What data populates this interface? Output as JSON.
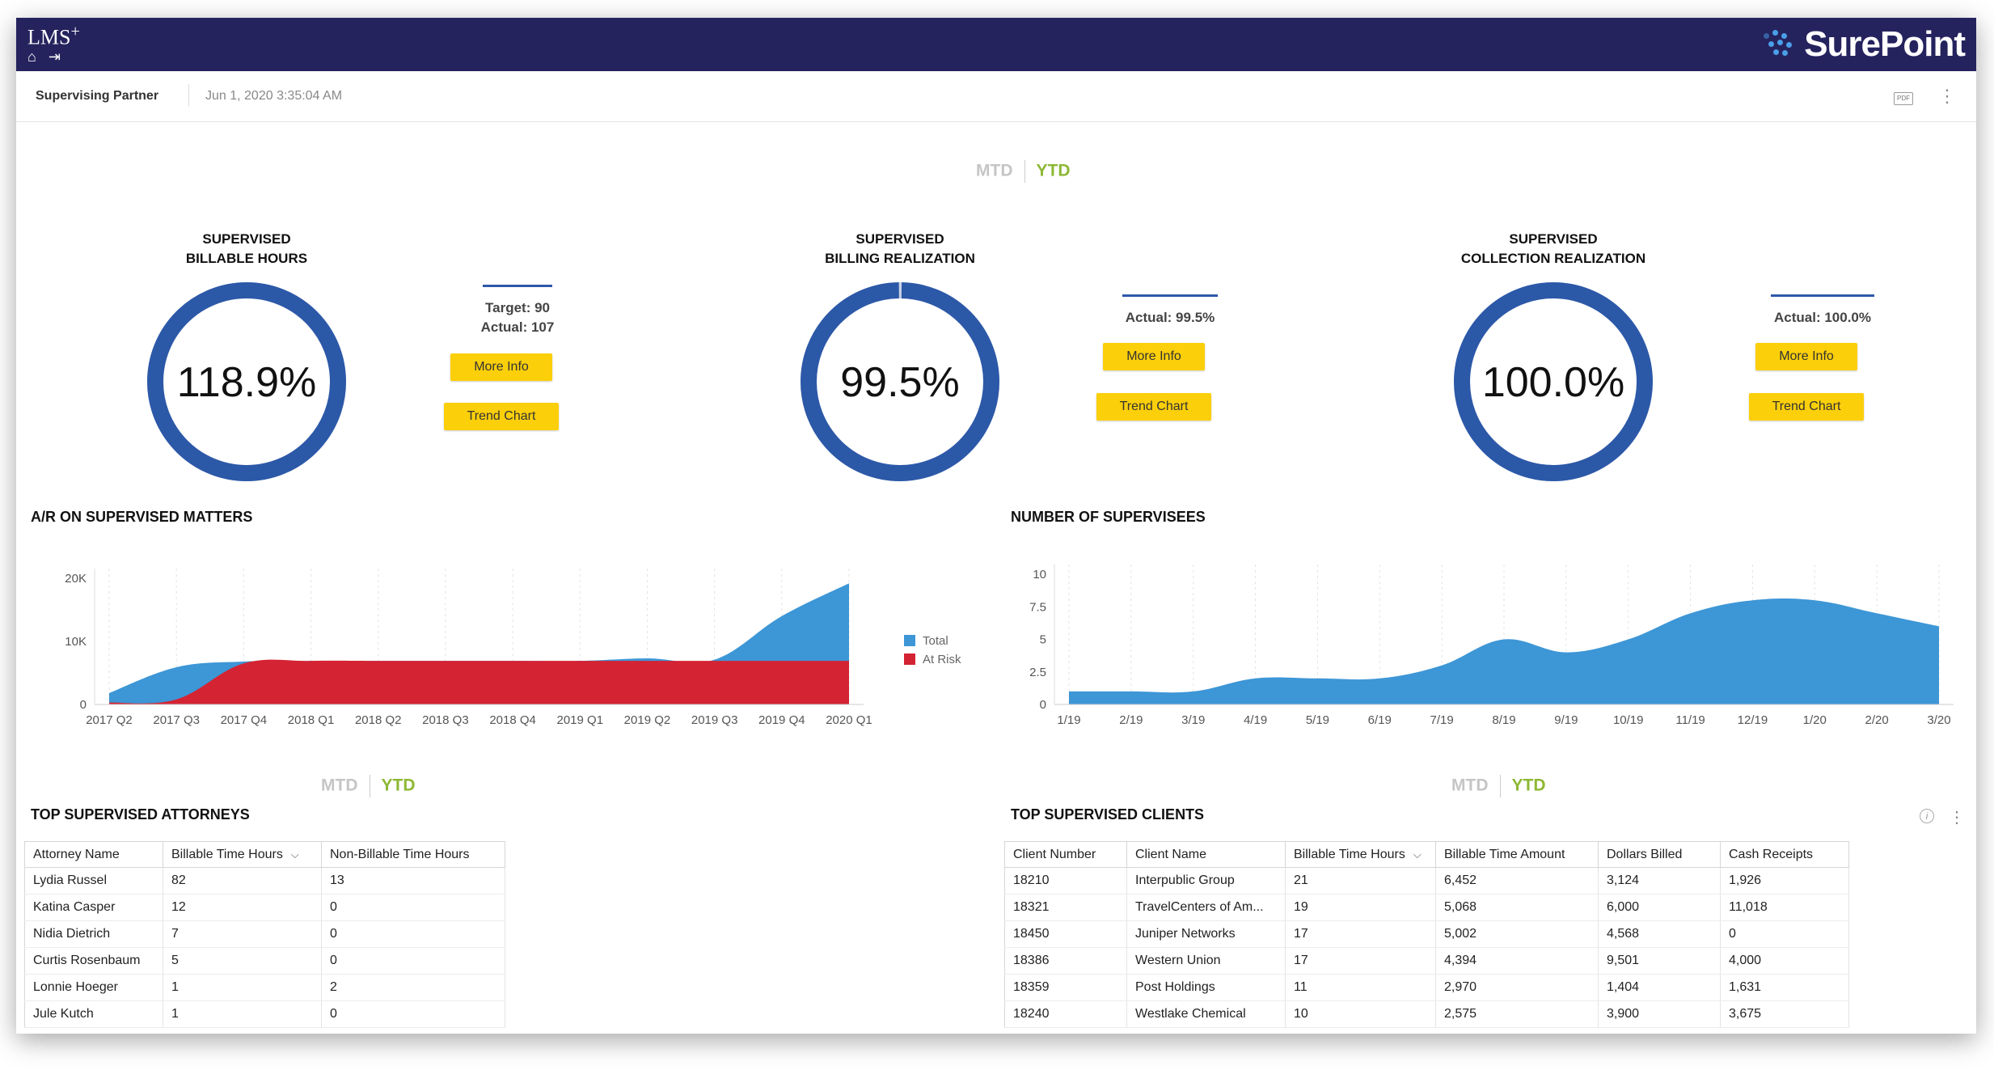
{
  "header": {
    "app_name": "LMS",
    "app_suffix": "+",
    "home_icon": "⌂",
    "logout_icon": "⇥",
    "brand": "SurePoint"
  },
  "subheader": {
    "role": "Supervising Partner",
    "timestamp": "Jun 1, 2020 3:35:04 AM",
    "pdf_label": "PDF",
    "menu_icon": "⋮"
  },
  "period_toggle": {
    "mtd": "MTD",
    "ytd": "YTD"
  },
  "kpis": [
    {
      "title_line1": "SUPERVISED",
      "title_line2": "BILLABLE HOURS",
      "value": "118.9%",
      "fraction": 1.0,
      "target": "Target: 90",
      "actual": "Actual: 107",
      "more_info": "More Info",
      "trend_chart": "Trend Chart"
    },
    {
      "title_line1": "SUPERVISED",
      "title_line2": "BILLING REALIZATION",
      "value": "99.5%",
      "fraction": 0.995,
      "actual": "Actual: 99.5%",
      "more_info": "More Info",
      "trend_chart": "Trend Chart"
    },
    {
      "title_line1": "SUPERVISED",
      "title_line2": "COLLECTION REALIZATION",
      "value": "100.0%",
      "fraction": 1.0,
      "actual": "Actual: 100.0%",
      "more_info": "More Info",
      "trend_chart": "Trend Chart"
    }
  ],
  "colors": {
    "donut": "#2c58a8",
    "donut_track": "#c9d3e6",
    "total": "#3d96d6",
    "at_risk": "#d42333",
    "supervisees": "#3d96d6"
  },
  "ar_chart": {
    "title": "A/R ON SUPERVISED MATTERS"
  },
  "supervisees_chart": {
    "title": "NUMBER OF SUPERVISEES"
  },
  "chart_data": [
    {
      "type": "area",
      "title": "A/R ON SUPERVISED MATTERS",
      "categories": [
        "2017 Q2",
        "2017 Q3",
        "2017 Q4",
        "2018 Q1",
        "2018 Q2",
        "2018 Q3",
        "2018 Q4",
        "2019 Q1",
        "2019 Q2",
        "2019 Q3",
        "2019 Q4",
        "2020 Q1"
      ],
      "y_ticks": [
        "0",
        "10K",
        "20K"
      ],
      "ylim": [
        0,
        20000
      ],
      "legend": "right",
      "grid": "vertical dashed",
      "series": [
        {
          "name": "Total",
          "values": [
            1800,
            5900,
            6800,
            6900,
            6900,
            6900,
            6900,
            6900,
            7300,
            7100,
            14000,
            19200
          ]
        },
        {
          "name": "At Risk",
          "values": [
            300,
            800,
            6500,
            6900,
            6900,
            6900,
            6900,
            6900,
            6900,
            6900,
            6900,
            6900
          ]
        }
      ]
    },
    {
      "type": "area",
      "title": "NUMBER OF SUPERVISEES",
      "categories": [
        "1/19",
        "2/19",
        "3/19",
        "4/19",
        "5/19",
        "6/19",
        "7/19",
        "8/19",
        "9/19",
        "10/19",
        "11/19",
        "12/19",
        "1/20",
        "2/20",
        "3/20"
      ],
      "y_ticks": [
        "0",
        "2.5",
        "5",
        "7.5",
        "10"
      ],
      "ylim": [
        0,
        10
      ],
      "grid": "vertical dashed",
      "series": [
        {
          "values": [
            1,
            1,
            1,
            2,
            2,
            2,
            3,
            5,
            4,
            5,
            7,
            8,
            8,
            7,
            6
          ]
        }
      ]
    }
  ],
  "attorneys": {
    "title": "TOP SUPERVISED ATTORNEYS",
    "sort_icon": "⌵",
    "columns": [
      "Attorney Name",
      "Billable Time Hours",
      "Non-Billable Time Hours"
    ],
    "rows": [
      [
        "Lydia Russel",
        "82",
        "13"
      ],
      [
        "Katina Casper",
        "12",
        "0"
      ],
      [
        "Nidia Dietrich",
        "7",
        "0"
      ],
      [
        "Curtis Rosenbaum",
        "5",
        "0"
      ],
      [
        "Lonnie Hoeger",
        "1",
        "2"
      ],
      [
        "Jule Kutch",
        "1",
        "0"
      ]
    ]
  },
  "clients": {
    "title": "TOP SUPERVISED CLIENTS",
    "info_icon": "i",
    "menu_icon": "⋮",
    "sort_icon": "⌵",
    "columns": [
      "Client Number",
      "Client Name",
      "Billable Time Hours",
      "Billable Time Amount",
      "Dollars Billed",
      "Cash Receipts"
    ],
    "rows": [
      [
        "18210",
        "Interpublic Group",
        "21",
        "6,452",
        "3,124",
        "1,926"
      ],
      [
        "18321",
        "TravelCenters of Am...",
        "19",
        "5,068",
        "6,000",
        "11,018"
      ],
      [
        "18450",
        "Juniper Networks",
        "17",
        "5,002",
        "4,568",
        "0"
      ],
      [
        "18386",
        "Western Union",
        "17",
        "4,394",
        "9,501",
        "4,000"
      ],
      [
        "18359",
        "Post Holdings",
        "11",
        "2,970",
        "1,404",
        "1,631"
      ],
      [
        "18240",
        "Westlake Chemical",
        "10",
        "2,575",
        "3,900",
        "3,675"
      ]
    ]
  }
}
